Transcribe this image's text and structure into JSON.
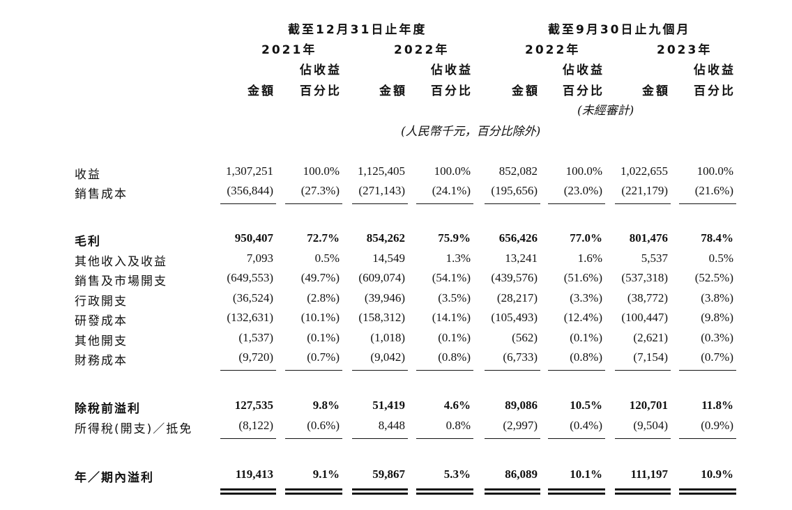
{
  "header": {
    "period_year": "截至12月31日止年度",
    "period_nine_months": "截至9月30日止九個月",
    "years": [
      "2021年",
      "2022年",
      "2022年",
      "2023年"
    ],
    "amount_label": "金額",
    "pct_label_line1": "佔收益",
    "pct_label_line2": "百分比",
    "unaudited": "(未經審計)",
    "unit_note": "(人民幣千元，百分比除外)"
  },
  "rows": [
    {
      "label": "收益",
      "bold": false,
      "values": [
        "1,307,251",
        "100.0%",
        "1,125,405",
        "100.0%",
        "852,082",
        "100.0%",
        "1,022,655",
        "100.0%"
      ]
    },
    {
      "label": "銷售成本",
      "bold": false,
      "values": [
        "(356,844)",
        "(27.3%)",
        "(271,143)",
        "(24.1%)",
        "(195,656)",
        "(23.0%)",
        "(221,179)",
        "(21.6%)"
      ]
    },
    {
      "label": "毛利",
      "bold": true,
      "values": [
        "950,407",
        "72.7%",
        "854,262",
        "75.9%",
        "656,426",
        "77.0%",
        "801,476",
        "78.4%"
      ]
    },
    {
      "label": "其他收入及收益",
      "bold": false,
      "values": [
        "7,093",
        "0.5%",
        "14,549",
        "1.3%",
        "13,241",
        "1.6%",
        "5,537",
        "0.5%"
      ]
    },
    {
      "label": "銷售及市場開支",
      "bold": false,
      "values": [
        "(649,553)",
        "(49.7%)",
        "(609,074)",
        "(54.1%)",
        "(439,576)",
        "(51.6%)",
        "(537,318)",
        "(52.5%)"
      ]
    },
    {
      "label": "行政開支",
      "bold": false,
      "values": [
        "(36,524)",
        "(2.8%)",
        "(39,946)",
        "(3.5%)",
        "(28,217)",
        "(3.3%)",
        "(38,772)",
        "(3.8%)"
      ]
    },
    {
      "label": "研發成本",
      "bold": false,
      "values": [
        "(132,631)",
        "(10.1%)",
        "(158,312)",
        "(14.1%)",
        "(105,493)",
        "(12.4%)",
        "(100,447)",
        "(9.8%)"
      ]
    },
    {
      "label": "其他開支",
      "bold": false,
      "values": [
        "(1,537)",
        "(0.1%)",
        "(1,018)",
        "(0.1%)",
        "(562)",
        "(0.1%)",
        "(2,621)",
        "(0.3%)"
      ]
    },
    {
      "label": "財務成本",
      "bold": false,
      "values": [
        "(9,720)",
        "(0.7%)",
        "(9,042)",
        "(0.8%)",
        "(6,733)",
        "(0.8%)",
        "(7,154)",
        "(0.7%)"
      ]
    },
    {
      "label": "除稅前溢利",
      "bold": true,
      "values": [
        "127,535",
        "9.8%",
        "51,419",
        "4.6%",
        "89,086",
        "10.5%",
        "120,701",
        "11.8%"
      ]
    },
    {
      "label": "所得稅(開支)／抵免",
      "bold": false,
      "values": [
        "(8,122)",
        "(0.6%)",
        "8,448",
        "0.8%",
        "(2,997)",
        "(0.4%)",
        "(9,504)",
        "(0.9%)"
      ]
    },
    {
      "label": "年／期內溢利",
      "bold": true,
      "values": [
        "119,413",
        "9.1%",
        "59,867",
        "5.3%",
        "86,089",
        "10.1%",
        "111,197",
        "10.9%"
      ]
    }
  ]
}
